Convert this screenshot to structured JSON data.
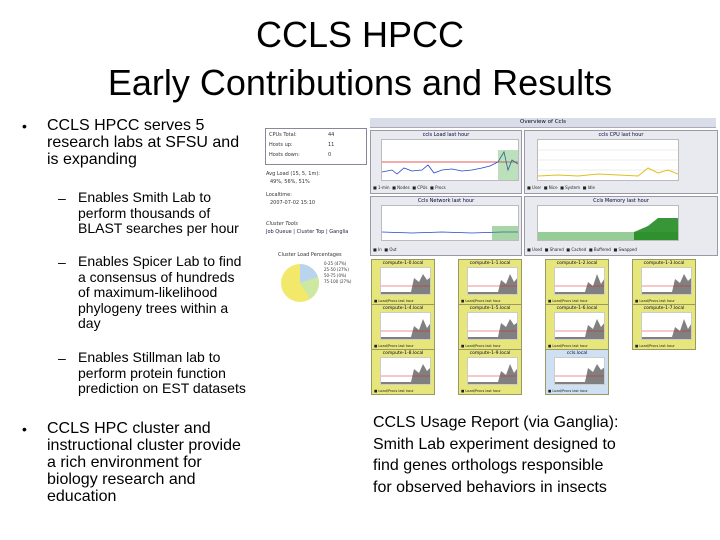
{
  "slide": {
    "title_line1": "CCLS HPCC",
    "title_line2": "Early Contributions and Results",
    "bullet1": [
      "CCLS HPCC serves 5",
      "research labs at SFSU and",
      "is expanding"
    ],
    "sub1": [
      "Enables Smith Lab to",
      "perform thousands of",
      "BLAST searches per hour"
    ],
    "sub2": [
      "Enables Spicer Lab to find",
      "a consensus of hundreds",
      "of maximum-likelihood",
      "phylogeny trees within a",
      "day"
    ],
    "sub3": [
      "Enables Stillman lab to",
      "perform protein function",
      "prediction on EST datasets"
    ],
    "bullet2": [
      "CCLS HPC cluster and",
      "instructional cluster provide",
      "a rich environment for",
      "biology research and",
      "education"
    ],
    "caption": [
      "CCLS Usage Report (via Ganglia):",
      "Smith Lab experiment designed to",
      "find genes orthologs responsible",
      "for observed behaviors in insects"
    ],
    "bullet_glyph": "•",
    "dash_glyph": "–"
  },
  "screenshot": {
    "overview_title": "Overview of Ccls",
    "summary_rows": [
      {
        "label": "CPUs Total:",
        "value": "44"
      },
      {
        "label": "Hosts up:",
        "value": "11"
      },
      {
        "label": "Hosts down:",
        "value": "0"
      }
    ],
    "avg_load": "Avg Load (15, 5, 1m):",
    "load_values": "49%, 56%, 51%",
    "localtime_label": "Localtime:",
    "localtime_value": "2007-07-02 15:10",
    "cluster_tools": "Cluster Tools",
    "tools_links": "Job Queue | Cluster Top | Ganglia",
    "cluster_load_pct": "Cluster Load Percentages",
    "pie_legend": [
      "0-25 (47%)",
      "25-50 (27%)",
      "50-75 (0%)",
      "75-100 (27%)"
    ],
    "graphs": [
      {
        "title": "ccls Load last hour"
      },
      {
        "title": "ccls CPU last hour"
      },
      {
        "title": "Ccls Network last hour"
      },
      {
        "title": "Ccls Memory last hour"
      }
    ],
    "nodes": [
      "compute-1-0.local",
      "compute-1-1.local",
      "compute-1-2.local",
      "compute-1-3.local",
      "compute-1-4.local",
      "compute-1-5.local",
      "compute-1-6.local",
      "compute-1-7.local",
      "compute-1-8.local",
      "compute-1-9.local",
      "ccls.local"
    ],
    "node_legend": "Load/Procs last hour",
    "colors": {
      "node_bg": "#e6e67a",
      "node_bg_alt": "#cfe0f2",
      "cpu_fill": "#228b22",
      "pie_yellow": "#f2e96b",
      "pie_green": "#cde8a0",
      "pie_blue": "#b8d4ee"
    }
  }
}
